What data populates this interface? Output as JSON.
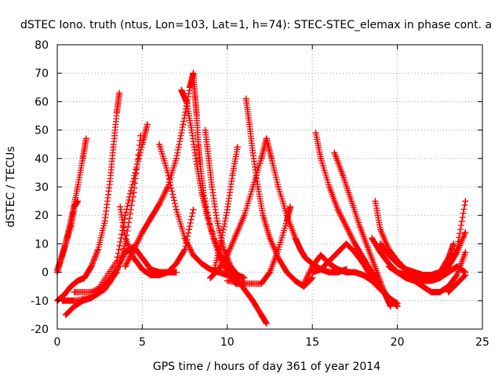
{
  "chart_data": {
    "type": "scatter",
    "title": "dSTEC Iono. truth (ntus, Lon=103, Lat=1, h=74): STEC-STEC_elemax in phase cont. a",
    "xlabel": "GPS time / hours of day 361 of year 2014",
    "ylabel": "dSTEC  / TECUs",
    "xlim": [
      0,
      25
    ],
    "ylim": [
      -20,
      80
    ],
    "xticks": [
      0,
      5,
      10,
      15,
      20,
      25
    ],
    "yticks": [
      -20,
      -10,
      0,
      10,
      20,
      30,
      40,
      50,
      60,
      70,
      80
    ],
    "grid": true,
    "marker": "plus",
    "series_color": "#ff0000",
    "series": [
      {
        "x": [
          0.0,
          0.3,
          0.6,
          0.9,
          1.2,
          1.5,
          1.7
        ],
        "y": [
          0,
          6,
          13,
          21,
          30,
          40,
          47
        ]
      },
      {
        "x": [
          0.0,
          0.4,
          0.8,
          1.2,
          1.6,
          2.0,
          2.4,
          2.8,
          3.1,
          3.3,
          3.5,
          3.65
        ],
        "y": [
          -10,
          -8,
          -5,
          -3,
          -2,
          2,
          8,
          18,
          32,
          44,
          56,
          63
        ]
      },
      {
        "x": [
          0.0,
          0.4,
          0.8,
          1.0,
          1.2
        ],
        "y": [
          1,
          8,
          16,
          23,
          25
        ]
      },
      {
        "x": [
          0.3,
          1.0,
          2.0,
          2.8,
          3.5,
          4.0,
          4.5,
          4.9
        ],
        "y": [
          -10,
          -10,
          -9,
          -6,
          0,
          10,
          28,
          48
        ]
      },
      {
        "x": [
          0.5,
          1.0,
          1.5,
          2.0,
          2.5,
          3.0,
          3.4
        ],
        "y": [
          -15,
          -12,
          -10,
          -9,
          -7,
          -3,
          0
        ]
      },
      {
        "x": [
          1.0,
          2.0,
          3.0,
          3.5,
          4.0,
          4.5,
          5.0,
          5.5,
          6.0,
          6.5,
          7.0,
          7.5,
          8.0
        ],
        "y": [
          -7,
          -7,
          -4,
          1,
          7,
          9,
          5,
          1,
          0,
          0,
          3,
          8,
          22
        ]
      },
      {
        "x": [
          2.5,
          3.5,
          4.0,
          4.5,
          5.0,
          5.3
        ],
        "y": [
          -5,
          4,
          20,
          33,
          45,
          52
        ]
      },
      {
        "x": [
          3.7,
          4.0,
          4.5,
          5.0,
          5.5,
          6.0,
          6.5,
          7.0
        ],
        "y": [
          23,
          12,
          5,
          1,
          -1,
          -1,
          0,
          0
        ]
      },
      {
        "x": [
          4.0,
          4.5,
          5.0,
          5.5,
          6.0,
          6.5,
          7.0,
          7.4,
          7.8,
          8.0
        ],
        "y": [
          2,
          8,
          14,
          19,
          24,
          30,
          40,
          52,
          65,
          70
        ]
      },
      {
        "x": [
          6.0,
          6.5,
          7.0,
          7.5,
          8.0,
          8.5,
          9.0,
          9.5,
          10.0
        ],
        "y": [
          45,
          35,
          22,
          12,
          6,
          3,
          1,
          0,
          -1
        ]
      },
      {
        "x": [
          7.3,
          7.6,
          7.9,
          8.2,
          8.5,
          8.8,
          9.2,
          9.6,
          10.0,
          10.5,
          11.0,
          11.5,
          12.0,
          12.3
        ],
        "y": [
          64,
          60,
          50,
          38,
          28,
          20,
          12,
          6,
          2,
          -2,
          -6,
          -10,
          -15,
          -18
        ]
      },
      {
        "x": [
          8.0,
          8.1,
          8.2,
          8.3,
          8.4,
          8.6,
          9.0,
          9.5,
          10.0,
          10.5,
          11.0
        ],
        "y": [
          70,
          62,
          55,
          45,
          38,
          28,
          16,
          6,
          0,
          -4,
          -4
        ]
      },
      {
        "x": [
          8.7,
          8.9,
          9.1,
          9.4,
          9.8,
          10.2,
          10.6,
          11.0
        ],
        "y": [
          50,
          40,
          30,
          18,
          8,
          2,
          -1,
          -2
        ]
      },
      {
        "x": [
          9.0,
          9.5,
          10.0,
          10.5,
          11.0,
          11.5,
          12.0,
          12.3
        ],
        "y": [
          -2,
          1,
          6,
          13,
          20,
          30,
          40,
          47
        ]
      },
      {
        "x": [
          9.2,
          9.6,
          10.0,
          10.3,
          10.6
        ],
        "y": [
          0,
          10,
          22,
          34,
          44
        ]
      },
      {
        "x": [
          11.1,
          11.3,
          11.5,
          11.8,
          12.1,
          12.5,
          13.0,
          13.5,
          14.0,
          14.5,
          15.0
        ],
        "y": [
          61,
          52,
          42,
          30,
          20,
          12,
          5,
          0,
          -3,
          -5,
          -2
        ]
      },
      {
        "x": [
          12.3,
          12.6,
          13.0,
          13.5,
          14.0,
          14.3,
          14.6,
          15.0,
          15.5,
          16.0,
          16.5,
          17.0
        ],
        "y": [
          47,
          40,
          30,
          20,
          12,
          8,
          5,
          3,
          1,
          0,
          0,
          1
        ]
      },
      {
        "x": [
          10.0,
          11.0,
          12.0,
          12.5,
          13.0,
          13.5,
          13.7
        ],
        "y": [
          -3,
          -4,
          -4,
          0,
          8,
          18,
          23
        ]
      },
      {
        "x": [
          15.2,
          15.5,
          16.0,
          16.5,
          17.0,
          17.5,
          18.0,
          18.5,
          19.0,
          19.5,
          20.0
        ],
        "y": [
          49,
          40,
          30,
          22,
          16,
          10,
          5,
          0,
          -5,
          -9,
          -12
        ]
      },
      {
        "x": [
          16.3,
          16.8,
          17.3,
          17.8,
          18.3,
          18.8,
          19.3,
          19.6
        ],
        "y": [
          42,
          34,
          25,
          16,
          8,
          0,
          -8,
          -12
        ]
      },
      {
        "x": [
          15.0,
          15.5,
          16.0,
          16.5,
          17.0,
          17.5,
          18.0,
          18.5,
          19.0,
          19.5,
          20.0
        ],
        "y": [
          0,
          1,
          4,
          7,
          10,
          7,
          3,
          -2,
          -6,
          -9,
          -11
        ]
      },
      {
        "x": [
          14.5,
          15.0,
          15.5,
          16.0,
          16.5,
          17.0,
          17.5,
          18.0,
          18.5,
          19.0
        ],
        "y": [
          -4,
          2,
          6,
          3,
          1,
          0,
          0,
          -1,
          -3,
          -6
        ]
      },
      {
        "x": [
          18.7,
          19.0,
          19.5,
          20.0,
          20.5,
          21.0,
          21.5,
          22.0
        ],
        "y": [
          25,
          15,
          8,
          4,
          1,
          0,
          -1,
          -2
        ]
      },
      {
        "x": [
          18.5,
          19.0,
          19.5,
          20.0,
          20.5,
          21.0,
          21.5,
          22.0,
          22.5,
          23.0
        ],
        "y": [
          12,
          7,
          3,
          0,
          -2,
          -3,
          -3,
          -3,
          -2,
          0
        ]
      },
      {
        "x": [
          19.0,
          19.5,
          20.0,
          20.5,
          21.0,
          21.5,
          22.0,
          22.5,
          23.0,
          23.5,
          24.0
        ],
        "y": [
          10,
          6,
          3,
          1,
          0,
          -1,
          -1,
          0,
          2,
          7,
          14
        ]
      },
      {
        "x": [
          19.5,
          20.0,
          20.5,
          21.0,
          21.5,
          22.0,
          22.5,
          23.0,
          23.5,
          24.0
        ],
        "y": [
          2,
          0,
          -1,
          -2,
          -2,
          -1,
          0,
          2,
          8,
          25
        ]
      },
      {
        "x": [
          20.5,
          21.0,
          21.5,
          22.0,
          22.5,
          23.0,
          23.5,
          24.0
        ],
        "y": [
          -1,
          -3,
          -5,
          -7,
          -7,
          -5,
          -1,
          7
        ]
      },
      {
        "x": [
          21.5,
          22.0,
          22.5,
          23.0,
          23.5,
          24.0
        ],
        "y": [
          -1,
          -1,
          0,
          0,
          2,
          0
        ]
      },
      {
        "x": [
          22.5,
          23.0,
          23.3
        ],
        "y": [
          0,
          5,
          10
        ]
      },
      {
        "x": [
          23.0,
          23.5,
          24.0
        ],
        "y": [
          -7,
          -4,
          -1
        ]
      }
    ]
  }
}
